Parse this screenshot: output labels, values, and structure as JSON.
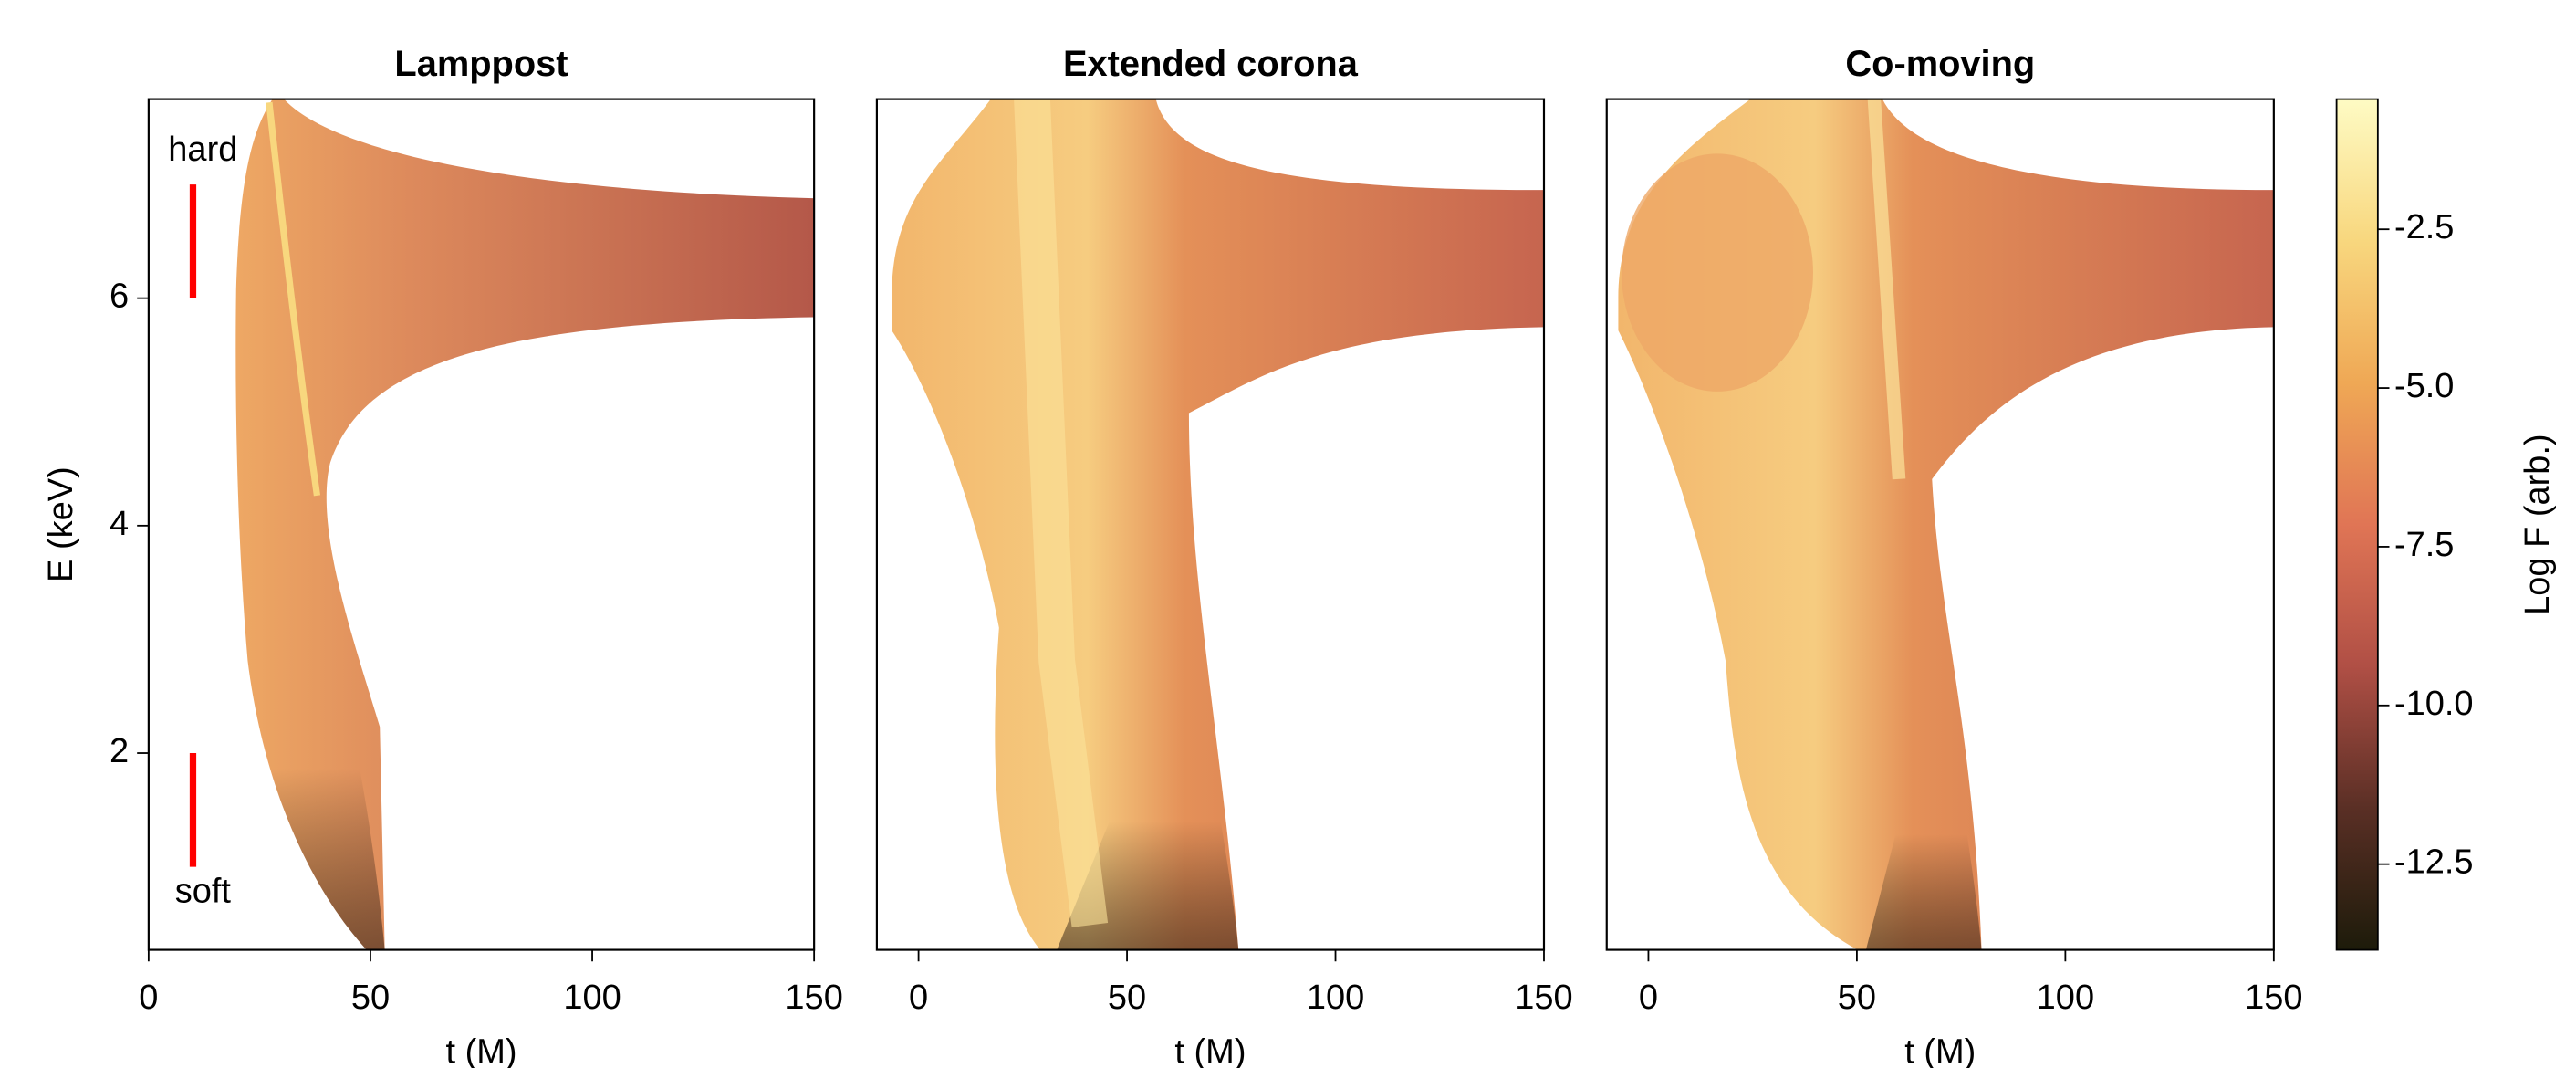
{
  "chart_data": [
    {
      "type": "heatmap",
      "title": "Lamppost",
      "xlabel": "t (M)",
      "ylabel": "E (keV)",
      "xlim": [
        0,
        150
      ],
      "xticks": [
        0,
        50,
        100,
        150
      ],
      "ylim": [
        0.27,
        7.75
      ],
      "yticks": [
        2,
        4,
        6
      ],
      "annotations": [
        {
          "label": "hard",
          "x": 10,
          "y0": 6,
          "y1": 7,
          "color": "#ff0000"
        },
        {
          "label": "soft",
          "x": 10,
          "y0": 1,
          "y1": 2,
          "color": "#ff0000"
        }
      ]
    },
    {
      "type": "heatmap",
      "title": "Extended corona",
      "xlabel": "t (M)",
      "xlim": [
        -10,
        150
      ],
      "xticks": [
        0,
        50,
        100,
        150
      ],
      "ylim": [
        0.27,
        7.75
      ]
    },
    {
      "type": "heatmap",
      "title": "Co-moving",
      "xlabel": "t (M)",
      "xlim": [
        -10,
        150
      ],
      "xticks": [
        0,
        50,
        100,
        150
      ],
      "ylim": [
        0.27,
        7.75
      ]
    },
    {
      "type": "colorbar",
      "label": "Log F (arb.)",
      "lim": [
        -13.85,
        -0.45
      ],
      "ticks": [
        -2.5,
        {
          "value": -5,
          "label": "-5.0"
        },
        -7.5,
        {
          "value": -10,
          "label": "-10.0"
        },
        -12.5
      ],
      "colors": [
        "#1d1b0a",
        "#5a2f25",
        "#b04f45",
        "#e07555",
        "#efa855",
        "#f8d77e",
        "#fefbc4"
      ]
    }
  ]
}
